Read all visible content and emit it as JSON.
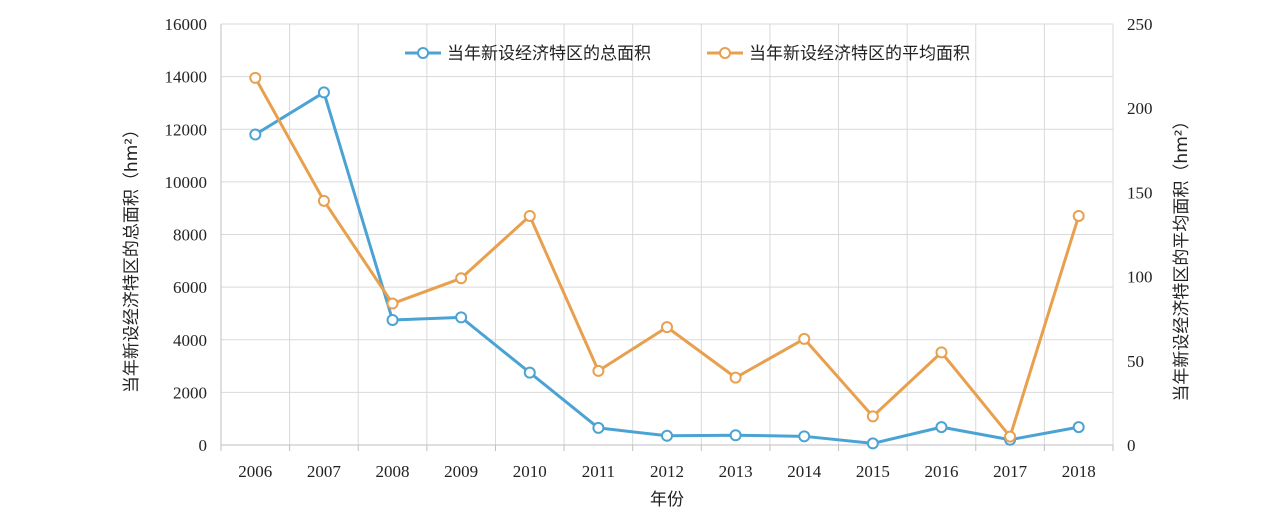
{
  "chart_data": {
    "type": "line",
    "title": "",
    "x": [
      "2006",
      "2007",
      "2008",
      "2009",
      "2010",
      "2011",
      "2012",
      "2013",
      "2014",
      "2015",
      "2016",
      "2017",
      "2018"
    ],
    "xlabel": "年份",
    "ylabel_left": "当年新设经济特区的总面积（hm²）",
    "ylabel_right": "当年新设经济特区的平均面积（hm²）",
    "ylim_left": [
      0,
      16000
    ],
    "ylim_right": [
      0,
      250
    ],
    "yticks_left": [
      "0",
      "2000",
      "4000",
      "6000",
      "8000",
      "10000",
      "12000",
      "14000",
      "16000"
    ],
    "yticks_right": [
      "0",
      "50",
      "100",
      "150",
      "200",
      "250"
    ],
    "grid": true,
    "legend_position": "top-center",
    "series": [
      {
        "name": "当年新设经济特区的总面积",
        "axis": "left",
        "color": "#4ba3d4",
        "values": [
          11800,
          13400,
          4750,
          4850,
          2750,
          650,
          350,
          370,
          330,
          60,
          680,
          200,
          680
        ]
      },
      {
        "name": "当年新设经济特区的平均面积",
        "axis": "right",
        "color": "#e8a04f",
        "values": [
          218,
          145,
          84,
          99,
          136,
          44,
          70,
          40,
          63,
          17,
          55,
          5,
          136
        ]
      }
    ]
  }
}
